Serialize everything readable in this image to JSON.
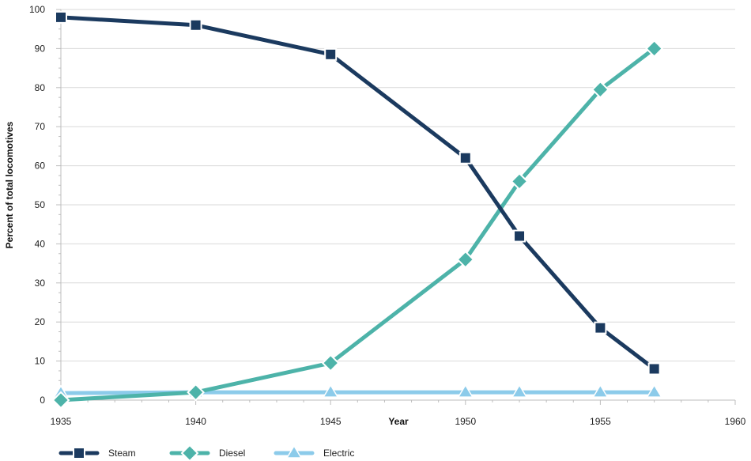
{
  "chart_data": {
    "type": "line",
    "xlabel": "Year",
    "ylabel": "Percent of total locomotives",
    "xlim": [
      1935,
      1960
    ],
    "ylim": [
      0,
      100
    ],
    "x_ticks": [
      1935,
      1940,
      1945,
      1950,
      1955,
      1960
    ],
    "y_ticks": [
      0,
      10,
      20,
      30,
      40,
      50,
      60,
      70,
      80,
      90,
      100
    ],
    "grid": "horizontal",
    "legend_position": "bottom-left",
    "series": [
      {
        "name": "Steam",
        "color": "#1b3a5f",
        "marker": "square",
        "points": [
          {
            "x": 1935,
            "y": 98
          },
          {
            "x": 1940,
            "y": 96
          },
          {
            "x": 1945,
            "y": 88.5
          },
          {
            "x": 1950,
            "y": 62
          },
          {
            "x": 1952,
            "y": 42
          },
          {
            "x": 1955,
            "y": 18.5
          },
          {
            "x": 1957,
            "y": 8
          }
        ]
      },
      {
        "name": "Diesel",
        "color": "#4db3a9",
        "marker": "diamond",
        "points": [
          {
            "x": 1935,
            "y": 0
          },
          {
            "x": 1940,
            "y": 2
          },
          {
            "x": 1945,
            "y": 9.5
          },
          {
            "x": 1950,
            "y": 36
          },
          {
            "x": 1952,
            "y": 56
          },
          {
            "x": 1955,
            "y": 79.5
          },
          {
            "x": 1957,
            "y": 90
          }
        ]
      },
      {
        "name": "Electric",
        "color": "#8ccbea",
        "marker": "triangle",
        "points": [
          {
            "x": 1935,
            "y": 1.8
          },
          {
            "x": 1940,
            "y": 2
          },
          {
            "x": 1945,
            "y": 2
          },
          {
            "x": 1950,
            "y": 2
          },
          {
            "x": 1952,
            "y": 2
          },
          {
            "x": 1955,
            "y": 2
          },
          {
            "x": 1957,
            "y": 2
          }
        ]
      }
    ]
  }
}
